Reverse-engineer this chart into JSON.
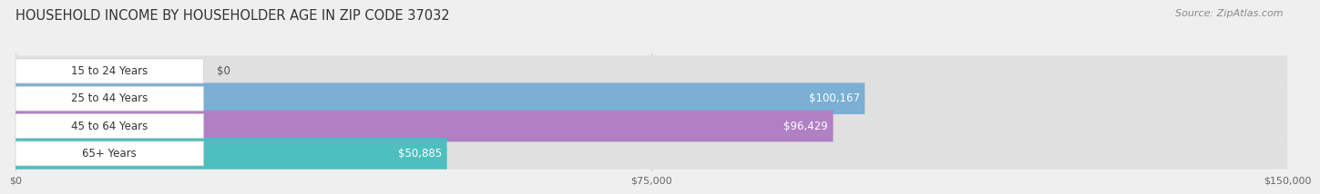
{
  "title": "HOUSEHOLD INCOME BY HOUSEHOLDER AGE IN ZIP CODE 37032",
  "source": "Source: ZipAtlas.com",
  "categories": [
    "15 to 24 Years",
    "25 to 44 Years",
    "45 to 64 Years",
    "65+ Years"
  ],
  "values": [
    0,
    100167,
    96429,
    50885
  ],
  "bar_colors": [
    "#f4a0a0",
    "#7bafd4",
    "#b07fc4",
    "#4dbfbf"
  ],
  "bar_height": 0.6,
  "xlim": [
    0,
    150000
  ],
  "xticks": [
    0,
    75000,
    150000
  ],
  "xtick_labels": [
    "$0",
    "$75,000",
    "$150,000"
  ],
  "background_color": "#efefef",
  "bar_bg_color": "#e0e0e0",
  "title_fontsize": 10.5,
  "source_fontsize": 8,
  "label_fontsize": 8.5,
  "category_fontsize": 8.5
}
